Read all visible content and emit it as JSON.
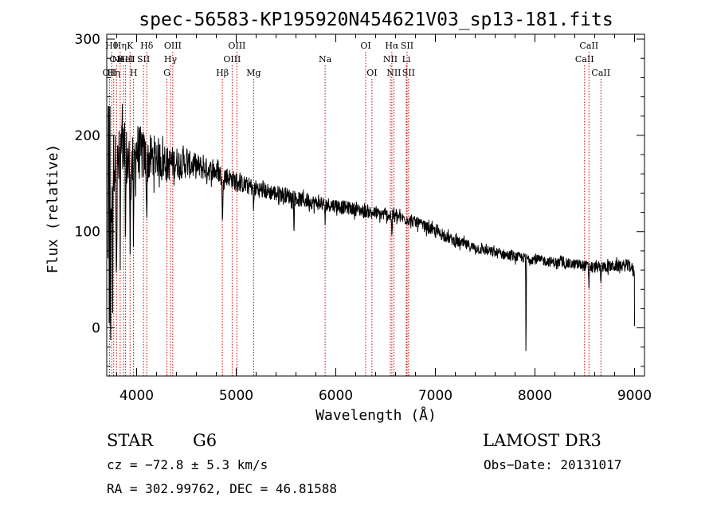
{
  "chart_data": {
    "type": "line",
    "title": "spec-56583-KP195920N454621V03_sp13-181.fits",
    "xlabel": "Wavelength (Å)",
    "ylabel": "Flux (relative)",
    "xlim": [
      3700,
      9100
    ],
    "ylim": [
      -50,
      305
    ],
    "xticks": [
      4000,
      5000,
      6000,
      7000,
      8000,
      9000
    ],
    "yticks": [
      0,
      100,
      200,
      300
    ],
    "x_tick_labels": [
      "4000",
      "5000",
      "6000",
      "7000",
      "8000",
      "9000"
    ],
    "y_tick_labels": [
      "0",
      "100",
      "200",
      "300"
    ],
    "continuum": [
      [
        3715,
        60
      ],
      [
        3740,
        120
      ],
      [
        3770,
        175
      ],
      [
        3800,
        160
      ],
      [
        3850,
        185
      ],
      [
        3900,
        175
      ],
      [
        3950,
        170
      ],
      [
        4000,
        185
      ],
      [
        4100,
        175
      ],
      [
        4200,
        178
      ],
      [
        4300,
        170
      ],
      [
        4400,
        172
      ],
      [
        4500,
        170
      ],
      [
        4600,
        168
      ],
      [
        4700,
        165
      ],
      [
        4800,
        162
      ],
      [
        4900,
        158
      ],
      [
        5000,
        152
      ],
      [
        5100,
        148
      ],
      [
        5200,
        145
      ],
      [
        5300,
        142
      ],
      [
        5400,
        140
      ],
      [
        5500,
        138
      ],
      [
        5600,
        134
      ],
      [
        5800,
        130
      ],
      [
        6000,
        127
      ],
      [
        6200,
        123
      ],
      [
        6400,
        119
      ],
      [
        6600,
        116
      ],
      [
        6800,
        110
      ],
      [
        7000,
        100
      ],
      [
        7200,
        90
      ],
      [
        7400,
        83
      ],
      [
        7600,
        78
      ],
      [
        7800,
        74
      ],
      [
        8000,
        71
      ],
      [
        8200,
        68
      ],
      [
        8400,
        66
      ],
      [
        8600,
        63
      ],
      [
        8800,
        64
      ],
      [
        8950,
        65
      ],
      [
        9000,
        58
      ]
    ],
    "absorption_features": [
      {
        "x": 3738,
        "depth": 150
      },
      {
        "x": 3760,
        "depth": 120
      },
      {
        "x": 3798,
        "depth": 90
      },
      {
        "x": 3835,
        "depth": 110
      },
      {
        "x": 3889,
        "depth": 80
      },
      {
        "x": 3934,
        "depth": 120
      },
      {
        "x": 3969,
        "depth": 100
      },
      {
        "x": 4102,
        "depth": 60
      },
      {
        "x": 4861,
        "depth": 55
      },
      {
        "x": 5175,
        "depth": 25
      },
      {
        "x": 5580,
        "depth": 30
      },
      {
        "x": 5893,
        "depth": 20
      },
      {
        "x": 6563,
        "depth": 20
      },
      {
        "x": 7910,
        "depth": 115
      },
      {
        "x": 8542,
        "depth": 18
      },
      {
        "x": 8662,
        "depth": 18
      }
    ],
    "noise_amplitude": [
      [
        3700,
        40
      ],
      [
        4000,
        30
      ],
      [
        4300,
        18
      ],
      [
        4800,
        10
      ],
      [
        5500,
        8
      ],
      [
        6500,
        6
      ],
      [
        8000,
        5
      ],
      [
        9000,
        6
      ]
    ],
    "line_markers": [
      {
        "x": 3727,
        "row": 3,
        "label": "OII"
      },
      {
        "x": 3750,
        "row": 1,
        "label": "Hθ"
      },
      {
        "x": 3770,
        "row": 3,
        "label": "Hη"
      },
      {
        "x": 3798,
        "row": 2,
        "label": "OII"
      },
      {
        "x": 3835,
        "row": 1,
        "label": "Hη"
      },
      {
        "x": 3869,
        "row": 2,
        "label": "NeIII"
      },
      {
        "x": 3889,
        "row": 2,
        "label": "HeI"
      },
      {
        "x": 3934,
        "row": 1,
        "label": "K"
      },
      {
        "x": 3969,
        "row": 3,
        "label": "H"
      },
      {
        "x": 4069,
        "row": 2,
        "label": "SII"
      },
      {
        "x": 4102,
        "row": 1,
        "label": "Hδ"
      },
      {
        "x": 4304,
        "row": 3,
        "label": "G"
      },
      {
        "x": 4340,
        "row": 2,
        "label": "Hγ"
      },
      {
        "x": 4363,
        "row": 1,
        "label": "OIII"
      },
      {
        "x": 4861,
        "row": 3,
        "label": "Hβ"
      },
      {
        "x": 4959,
        "row": 2,
        "label": "OIII"
      },
      {
        "x": 5007,
        "row": 1,
        "label": "OIII"
      },
      {
        "x": 5175,
        "row": 3,
        "label": "Mg"
      },
      {
        "x": 5893,
        "row": 2,
        "label": "Na"
      },
      {
        "x": 6300,
        "row": 1,
        "label": "OI"
      },
      {
        "x": 6363,
        "row": 3,
        "label": "OI"
      },
      {
        "x": 6548,
        "row": 2,
        "label": "NII"
      },
      {
        "x": 6563,
        "row": 1,
        "label": "Hα"
      },
      {
        "x": 6583,
        "row": 3,
        "label": "NII"
      },
      {
        "x": 6708,
        "row": 2,
        "label": "Li"
      },
      {
        "x": 6716,
        "row": 1,
        "label": "SII"
      },
      {
        "x": 6731,
        "row": 3,
        "label": "SII"
      },
      {
        "x": 8498,
        "row": 2,
        "label": "CaII"
      },
      {
        "x": 8542,
        "row": 1,
        "label": "CaII"
      },
      {
        "x": 8662,
        "row": 3,
        "label": "CaII"
      }
    ]
  },
  "info": {
    "object_class": "STAR",
    "subclass": "G6",
    "survey": "LAMOST DR3",
    "cz": "cz = −72.8 ± 5.3 km/s",
    "obs_date": "Obs−Date: 20131017",
    "coords": "RA = 302.99762, DEC =  46.81588"
  },
  "colors": {
    "spectrum": "#000000",
    "marker": "#cc0000",
    "axis": "#000000"
  }
}
